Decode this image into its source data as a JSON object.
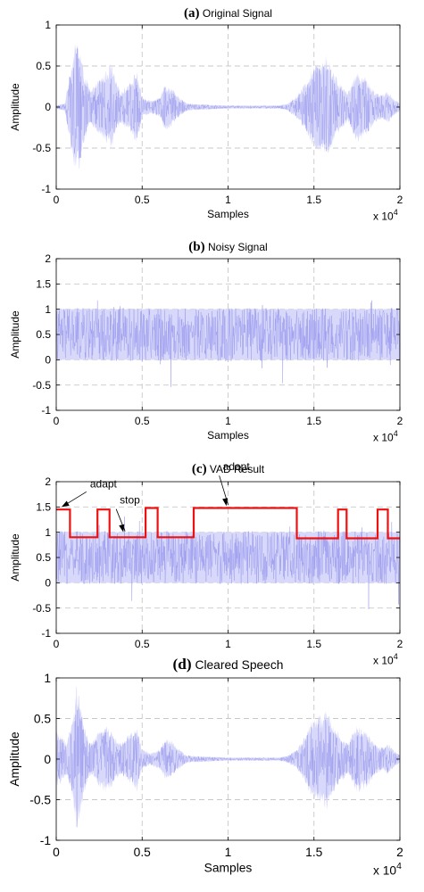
{
  "chart_data": [
    {
      "type": "line",
      "panel_letter": "(a)",
      "title": "Original Signal",
      "xlabel": "Samples",
      "ylabel": "Amplitude",
      "x_multiplier": "x 10",
      "x_multiplier_exp": "4",
      "xlim": [
        0,
        2
      ],
      "ylim": [
        -1,
        1
      ],
      "xticks": [
        0,
        0.5,
        1,
        1.5,
        2
      ],
      "xtick_labels": [
        "0",
        "0.5",
        "1",
        "1.5",
        "2"
      ],
      "yticks": [
        -1,
        -0.5,
        0,
        0.5,
        1
      ],
      "ytick_labels": [
        "-1",
        "-0.5",
        "0",
        "0.5",
        "1"
      ],
      "grid": true,
      "signal_color": "#9999ee",
      "signal_fill": "#d8d8fa",
      "envelope": {
        "x": [
          0,
          0.05,
          0.1,
          0.12,
          0.14,
          0.16,
          0.2,
          0.25,
          0.29,
          0.32,
          0.35,
          0.38,
          0.42,
          0.47,
          0.5,
          0.55,
          0.6,
          0.63,
          0.67,
          0.7,
          0.73,
          0.76,
          0.8,
          0.9,
          1.0,
          1.1,
          1.2,
          1.3,
          1.35,
          1.4,
          1.45,
          1.48,
          1.52,
          1.55,
          1.57,
          1.6,
          1.65,
          1.7,
          1.72,
          1.75,
          1.78,
          1.81,
          1.85,
          1.9,
          1.93,
          1.96,
          2.0
        ],
        "y": [
          0.02,
          0.05,
          0.7,
          0.85,
          0.72,
          0.45,
          0.2,
          0.35,
          0.45,
          0.55,
          0.3,
          0.2,
          0.3,
          0.45,
          0.12,
          0.08,
          0.12,
          0.28,
          0.25,
          0.15,
          0.1,
          0.05,
          0.04,
          0.03,
          0.02,
          0.02,
          0.02,
          0.02,
          0.05,
          0.15,
          0.3,
          0.45,
          0.6,
          0.55,
          0.65,
          0.5,
          0.3,
          0.2,
          0.3,
          0.45,
          0.4,
          0.35,
          0.2,
          0.15,
          0.2,
          0.12,
          0.05
        ]
      }
    },
    {
      "type": "line",
      "panel_letter": "(b)",
      "title": "Noisy Signal",
      "xlabel": "Samples",
      "ylabel": "Amplitude",
      "x_multiplier": "x 10",
      "x_multiplier_exp": "4",
      "xlim": [
        0,
        2
      ],
      "ylim": [
        -1,
        2
      ],
      "xticks": [
        0,
        0.5,
        1,
        1.5,
        2
      ],
      "xtick_labels": [
        "0",
        "0.5",
        "1",
        "1.5",
        "2"
      ],
      "yticks": [
        -1,
        -0.5,
        0,
        0.5,
        1,
        1.5,
        2
      ],
      "ytick_labels": [
        "-1",
        "-0.5",
        "0",
        "0.5",
        "1",
        "1.5",
        "2"
      ],
      "grid": true,
      "signal_color": "#9999ee",
      "signal_fill": "#d8d8fa",
      "noise_band": [
        0,
        1
      ]
    },
    {
      "type": "line",
      "panel_letter": "(c)",
      "title": "VAD Result",
      "xlabel": "",
      "ylabel": "Amplitude",
      "x_multiplier": "x 10",
      "x_multiplier_exp": "4",
      "xlim": [
        0,
        2
      ],
      "ylim": [
        -1,
        2
      ],
      "xticks": [
        0,
        0.5,
        1,
        1.5,
        2
      ],
      "xtick_labels": [
        "0",
        "0.5",
        "1",
        "1.5",
        "2"
      ],
      "yticks": [
        -1,
        -0.5,
        0,
        0.5,
        1,
        1.5,
        2
      ],
      "ytick_labels": [
        "-1",
        "-0.5",
        "0",
        "0.5",
        "1",
        "1.5",
        "2"
      ],
      "grid": true,
      "signal_color": "#9999ee",
      "signal_fill": "#d8d8fa",
      "noise_band": [
        0,
        1
      ],
      "vad_color": "#ee1111",
      "vad": {
        "x": [
          0,
          0.08,
          0.08,
          0.24,
          0.24,
          0.31,
          0.31,
          0.52,
          0.52,
          0.59,
          0.59,
          0.8,
          0.8,
          1.4,
          1.4,
          1.64,
          1.64,
          1.69,
          1.69,
          1.87,
          1.87,
          1.93,
          1.93,
          2.0
        ],
        "y": [
          1.45,
          1.45,
          0.9,
          0.9,
          1.45,
          1.45,
          0.9,
          0.9,
          1.48,
          1.48,
          0.9,
          0.9,
          1.48,
          1.48,
          0.88,
          0.88,
          1.45,
          1.45,
          0.88,
          0.88,
          1.45,
          1.45,
          0.88,
          0.88
        ]
      },
      "annotations": [
        {
          "text": "adapt",
          "target": [
            0.02,
            1.5
          ]
        },
        {
          "text": "stop",
          "target": [
            0.38,
            1.0
          ]
        },
        {
          "text": "adapt",
          "target": [
            0.98,
            1.52
          ]
        }
      ]
    },
    {
      "type": "line",
      "panel_letter": "(d)",
      "title": "Cleared Speech",
      "xlabel": "Samples",
      "ylabel": "Amplitude",
      "x_multiplier": "x 10",
      "x_multiplier_exp": "4",
      "xlim": [
        0,
        2
      ],
      "ylim": [
        -1,
        1
      ],
      "xticks": [
        0,
        0.5,
        1,
        1.5,
        2
      ],
      "xtick_labels": [
        "0",
        "0.5",
        "1",
        "1.5",
        "2"
      ],
      "yticks": [
        -1,
        -0.5,
        0,
        0.5,
        1
      ],
      "ytick_labels": [
        "-1",
        "-0.5",
        "0",
        "0.5",
        "1"
      ],
      "grid": true,
      "signal_color": "#9999ee",
      "signal_fill": "#d8d8fa",
      "envelope": {
        "x": [
          0,
          0.03,
          0.06,
          0.1,
          0.12,
          0.14,
          0.17,
          0.2,
          0.25,
          0.29,
          0.32,
          0.35,
          0.38,
          0.42,
          0.47,
          0.5,
          0.55,
          0.6,
          0.63,
          0.67,
          0.7,
          0.73,
          0.76,
          0.8,
          0.9,
          1.0,
          1.1,
          1.2,
          1.3,
          1.35,
          1.4,
          1.45,
          1.48,
          1.52,
          1.55,
          1.57,
          1.6,
          1.65,
          1.7,
          1.72,
          1.75,
          1.78,
          1.81,
          1.85,
          1.9,
          1.93,
          1.96,
          2.0
        ],
        "y": [
          0.35,
          0.3,
          0.2,
          0.55,
          0.95,
          0.7,
          0.35,
          0.2,
          0.35,
          0.45,
          0.35,
          0.25,
          0.2,
          0.3,
          0.4,
          0.12,
          0.08,
          0.12,
          0.25,
          0.25,
          0.15,
          0.1,
          0.05,
          0.04,
          0.03,
          0.02,
          0.02,
          0.02,
          0.02,
          0.05,
          0.12,
          0.3,
          0.45,
          0.55,
          0.55,
          0.65,
          0.5,
          0.3,
          0.2,
          0.3,
          0.42,
          0.4,
          0.35,
          0.2,
          0.15,
          0.2,
          0.12,
          0.05
        ]
      }
    }
  ]
}
